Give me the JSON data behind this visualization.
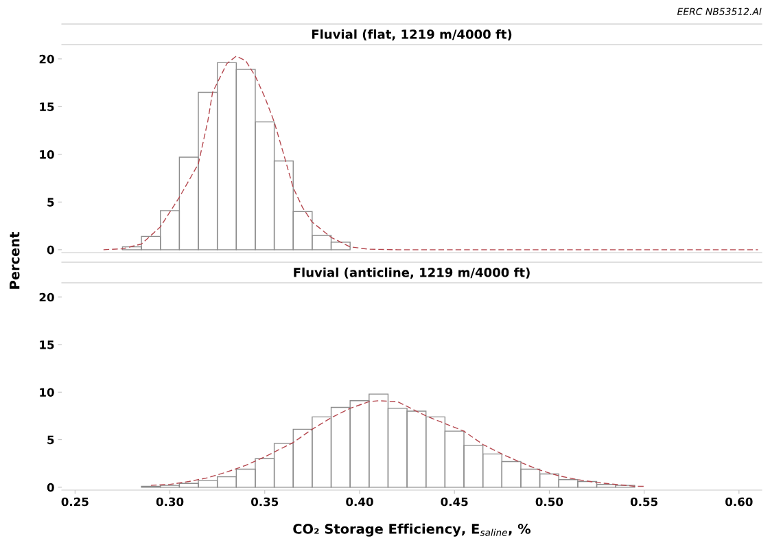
{
  "chart_data": [
    {
      "type": "histogram",
      "title": "Fluvial (flat, 1219 m/4000 ft)",
      "ylabel": "Percent",
      "annotations": [
        "EERC NB53512.AI"
      ],
      "bins": [
        0.275,
        0.285,
        0.295,
        0.305,
        0.315,
        0.325,
        0.335,
        0.345,
        0.355,
        0.365,
        0.375,
        0.385,
        0.395
      ],
      "values": [
        0.3,
        1.4,
        4.1,
        9.7,
        16.5,
        19.6,
        18.9,
        13.4,
        9.3,
        4.0,
        1.5,
        0.8
      ],
      "color": "#8c8c8c",
      "series": [
        {
          "type": "line",
          "color": "#b5484f",
          "line_style": "dashed",
          "x": [
            0.265,
            0.275,
            0.285,
            0.295,
            0.305,
            0.315,
            0.32,
            0.3225,
            0.33,
            0.335,
            0.34,
            0.345,
            0.35,
            0.355,
            0.36,
            0.365,
            0.37,
            0.375,
            0.385,
            0.395,
            0.405,
            0.42,
            0.61
          ],
          "values": [
            0,
            0.1,
            0.6,
            2.4,
            5.5,
            9.0,
            13.5,
            16.5,
            19.5,
            20.3,
            19.8,
            18.2,
            16.0,
            13.4,
            10.0,
            6.5,
            4.4,
            2.9,
            1.3,
            0.3,
            0.05,
            0,
            0
          ]
        }
      ],
      "xlim": [
        0.243,
        0.612
      ],
      "ylim": [
        -0.3,
        21.5
      ],
      "yticks": [
        0,
        5,
        10,
        15,
        20
      ],
      "tick_labels": "y",
      "grid": false,
      "legend": false
    },
    {
      "type": "histogram",
      "title": "Fluvial (anticline, 1219 m/4000 ft)",
      "xlabel": "CO₂ Storage Efficiency, E$_{saline}$, %",
      "bins": [
        0.285,
        0.295,
        0.305,
        0.315,
        0.325,
        0.335,
        0.345,
        0.355,
        0.365,
        0.375,
        0.385,
        0.395,
        0.405,
        0.415,
        0.425,
        0.435,
        0.445,
        0.455,
        0.465,
        0.475,
        0.485,
        0.495,
        0.505,
        0.515,
        0.525,
        0.535,
        0.545
      ],
      "values": [
        0.1,
        0.2,
        0.4,
        0.7,
        1.1,
        1.9,
        3.0,
        4.6,
        6.1,
        7.4,
        8.4,
        9.1,
        9.8,
        8.3,
        8.0,
        7.4,
        5.9,
        4.4,
        3.5,
        2.7,
        1.9,
        1.4,
        0.8,
        0.6,
        0.3,
        0.2
      ],
      "color": "#8c8c8c",
      "series": [
        {
          "type": "line",
          "color": "#b5484f",
          "line_style": "dashed",
          "x": [
            0.29,
            0.3,
            0.31,
            0.32,
            0.33,
            0.34,
            0.35,
            0.355,
            0.365,
            0.375,
            0.385,
            0.395,
            0.405,
            0.41,
            0.42,
            0.435,
            0.445,
            0.455,
            0.465,
            0.475,
            0.485,
            0.495,
            0.505,
            0.515,
            0.525,
            0.535,
            0.545,
            0.55
          ],
          "values": [
            0.2,
            0.3,
            0.6,
            1.0,
            1.6,
            2.3,
            3.2,
            3.7,
            4.7,
            6.1,
            7.3,
            8.3,
            9.0,
            9.1,
            9.0,
            7.5,
            6.7,
            5.9,
            4.5,
            3.5,
            2.6,
            1.8,
            1.2,
            0.8,
            0.5,
            0.3,
            0.1,
            0.1
          ]
        }
      ],
      "xlim": [
        0.243,
        0.612
      ],
      "ylim": [
        -0.3,
        21.5
      ],
      "xticks": [
        0.25,
        {
          "value": 0.3,
          "label": "0.30"
        },
        0.35,
        {
          "value": 0.4,
          "label": "0.40"
        },
        0.45,
        {
          "value": 0.5,
          "label": "0.50"
        },
        0.55,
        {
          "value": 0.6,
          "label": "0.60"
        }
      ],
      "yticks": [
        0,
        5,
        10,
        15,
        20
      ],
      "grid": false,
      "legend": false
    }
  ]
}
